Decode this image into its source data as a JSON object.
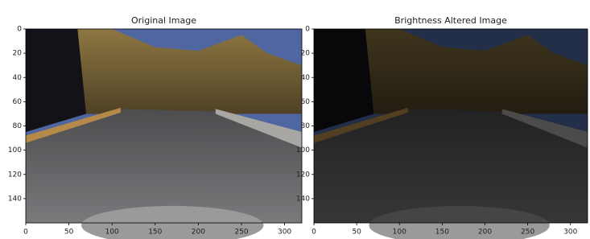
{
  "chart_data": [
    {
      "type": "image",
      "title": "Original Image",
      "xlim": [
        0,
        320
      ],
      "ylim": [
        160,
        0
      ],
      "xticks": [
        0,
        50,
        100,
        150,
        200,
        250,
        300
      ],
      "yticks": [
        0,
        20,
        40,
        60,
        80,
        100,
        120,
        140
      ]
    },
    {
      "type": "image",
      "title": "Brightness Altered Image",
      "xlim": [
        0,
        320
      ],
      "ylim": [
        160,
        0
      ],
      "xticks": [
        0,
        50,
        100,
        150,
        200,
        250,
        300
      ],
      "yticks": [
        0,
        20,
        40,
        60,
        80,
        100,
        120,
        140
      ]
    }
  ]
}
